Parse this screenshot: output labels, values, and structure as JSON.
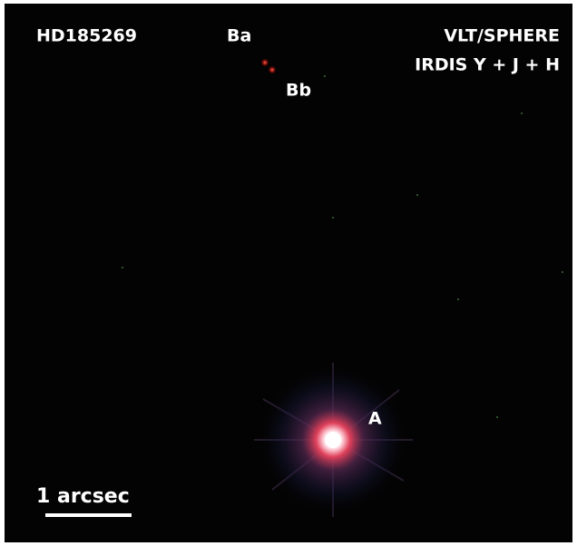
{
  "labels": {
    "target": "HD185269",
    "instrument": "VLT/SPHERE",
    "filters": "IRDIS Y + J + H",
    "ba": "Ba",
    "bb": "Bb",
    "a": "A"
  },
  "scale_bar": "1 arcsec"
}
